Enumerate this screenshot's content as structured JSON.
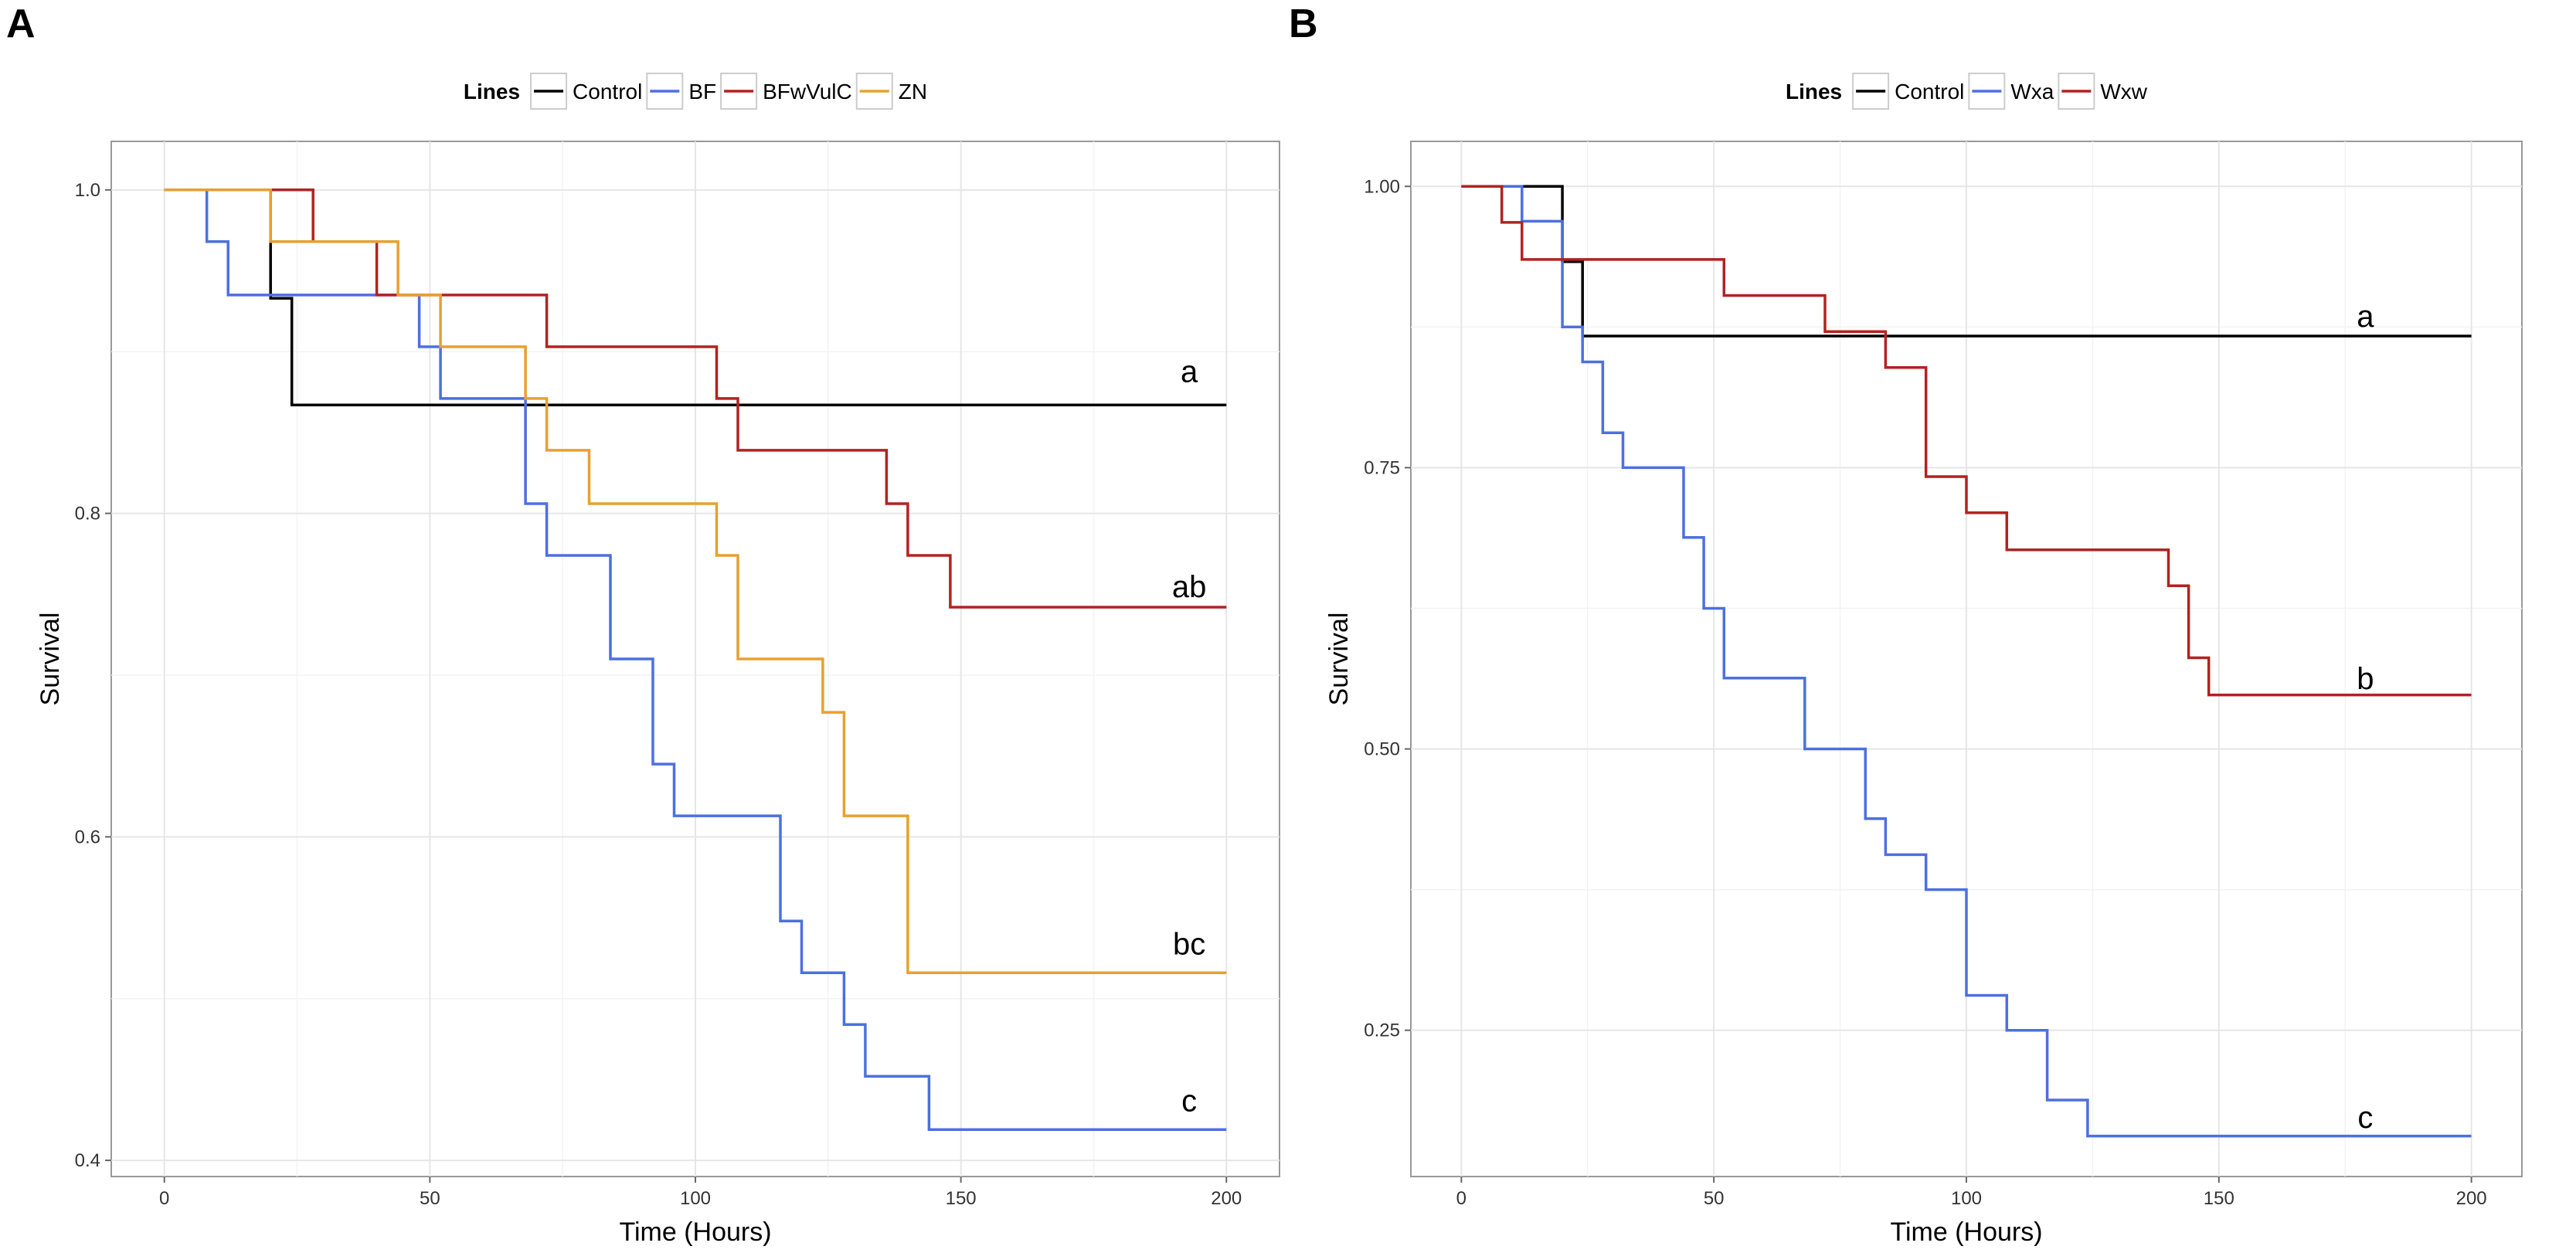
{
  "chart_data": [
    {
      "panel_label": "A",
      "type": "line",
      "step": true,
      "title": "",
      "xlabel": "Time (Hours)",
      "ylabel": "Survival",
      "xlim": [
        -10,
        210
      ],
      "ylim": [
        0.39,
        1.03
      ],
      "xticks": [
        0,
        50,
        100,
        150,
        200
      ],
      "xtick_labels": [
        "0",
        "50",
        "100",
        "150",
        "200"
      ],
      "yticks": [
        0.4,
        0.6,
        0.8,
        1.0
      ],
      "ytick_labels": [
        "0.4",
        "0.6",
        "0.8",
        "1.0"
      ],
      "legend": {
        "title": "Lines",
        "position": "top"
      },
      "series": [
        {
          "name": "Control",
          "color": "#000000",
          "x": [
            0,
            20,
            24,
            200
          ],
          "y": [
            1.0,
            0.933,
            0.867,
            0.867
          ]
        },
        {
          "name": "BF",
          "color": "#4d6fe0",
          "x": [
            0,
            8,
            12,
            48,
            52,
            68,
            72,
            84,
            92,
            96,
            116,
            120,
            128,
            132,
            144,
            200
          ],
          "y": [
            1.0,
            0.968,
            0.935,
            0.903,
            0.871,
            0.806,
            0.774,
            0.71,
            0.645,
            0.613,
            0.548,
            0.516,
            0.484,
            0.452,
            0.419,
            0.419
          ]
        },
        {
          "name": "BFwVulC",
          "color": "#b22222",
          "x": [
            0,
            28,
            40,
            72,
            104,
            108,
            136,
            140,
            148,
            200
          ],
          "y": [
            1.0,
            0.968,
            0.935,
            0.903,
            0.871,
            0.839,
            0.806,
            0.774,
            0.742,
            0.742
          ]
        },
        {
          "name": "ZN",
          "color": "#e8a030",
          "x": [
            0,
            20,
            44,
            52,
            68,
            72,
            80,
            104,
            108,
            124,
            128,
            140,
            200
          ],
          "y": [
            1.0,
            0.968,
            0.935,
            0.903,
            0.871,
            0.839,
            0.806,
            0.774,
            0.71,
            0.677,
            0.613,
            0.516,
            0.516
          ]
        }
      ],
      "annotations": [
        {
          "text": "a",
          "x": 193,
          "y": 0.888
        },
        {
          "text": "ab",
          "x": 193,
          "y": 0.755
        },
        {
          "text": "bc",
          "x": 193,
          "y": 0.534
        },
        {
          "text": "c",
          "x": 193,
          "y": 0.437
        }
      ]
    },
    {
      "panel_label": "B",
      "type": "line",
      "step": true,
      "title": "",
      "xlabel": "Time (Hours)",
      "ylabel": "Survival",
      "xlim": [
        -10,
        210
      ],
      "ylim": [
        0.12,
        1.04
      ],
      "xticks": [
        0,
        50,
        100,
        150,
        200
      ],
      "xtick_labels": [
        "0",
        "50",
        "100",
        "150",
        "200"
      ],
      "yticks": [
        0.25,
        0.5,
        0.75,
        1.0
      ],
      "ytick_labels": [
        "0.25",
        "0.50",
        "0.75",
        "1.00"
      ],
      "legend": {
        "title": "Lines",
        "position": "top"
      },
      "series": [
        {
          "name": "Control",
          "color": "#000000",
          "x": [
            0,
            20,
            24,
            200
          ],
          "y": [
            1.0,
            0.933,
            0.867,
            0.867
          ]
        },
        {
          "name": "Wxa",
          "color": "#4d6fe0",
          "x": [
            0,
            12,
            20,
            24,
            28,
            32,
            44,
            48,
            52,
            68,
            80,
            84,
            92,
            100,
            108,
            116,
            124,
            200
          ],
          "y": [
            1.0,
            0.969,
            0.875,
            0.844,
            0.781,
            0.75,
            0.688,
            0.625,
            0.563,
            0.5,
            0.438,
            0.406,
            0.375,
            0.281,
            0.25,
            0.188,
            0.156,
            0.156
          ]
        },
        {
          "name": "Wxw",
          "color": "#b22222",
          "x": [
            0,
            8,
            12,
            52,
            72,
            84,
            92,
            100,
            108,
            140,
            144,
            148,
            200
          ],
          "y": [
            1.0,
            0.968,
            0.935,
            0.903,
            0.871,
            0.839,
            0.742,
            0.71,
            0.677,
            0.645,
            0.581,
            0.548,
            0.548
          ]
        }
      ],
      "annotations": [
        {
          "text": "a",
          "x": 179,
          "y": 0.885
        },
        {
          "text": "b",
          "x": 179,
          "y": 0.563
        },
        {
          "text": "c",
          "x": 179,
          "y": 0.173
        }
      ]
    }
  ]
}
